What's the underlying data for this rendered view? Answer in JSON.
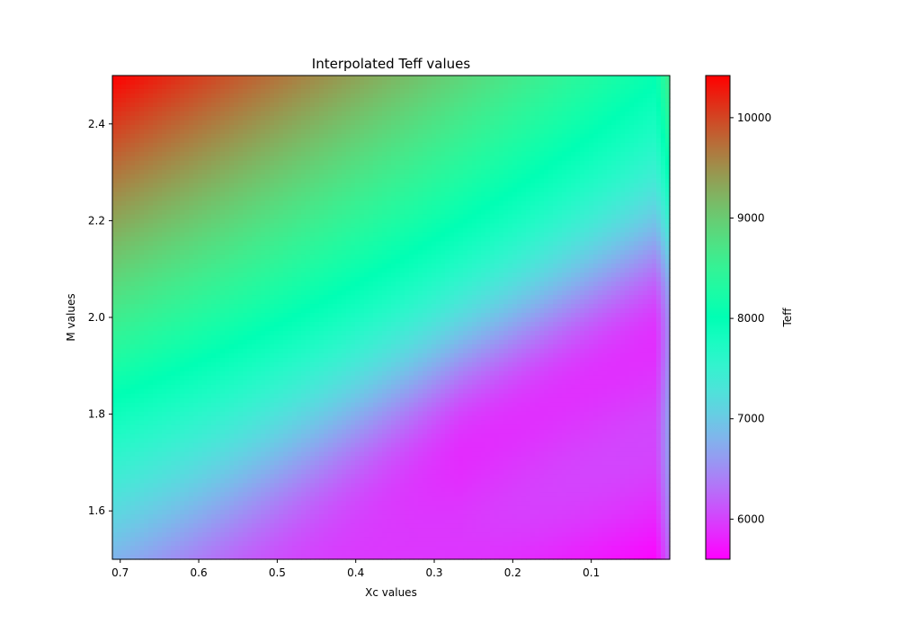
{
  "chart_data": {
    "type": "heatmap",
    "title": "Interpolated Teff values",
    "xlabel": "Xc values",
    "ylabel": "M values",
    "x_axis_reversed": true,
    "xlim": [
      0.71,
      0.0
    ],
    "ylim": [
      1.5,
      2.5
    ],
    "xticks": [
      0.7,
      0.6,
      0.5,
      0.4,
      0.3,
      0.2,
      0.1
    ],
    "yticks": [
      1.6,
      1.8,
      2.0,
      2.2,
      2.4
    ],
    "colorbar": {
      "label": "Teff",
      "colormap": "rainbow",
      "range": [
        5600,
        10420
      ],
      "ticks": [
        6000,
        7000,
        8000,
        9000,
        10000
      ]
    },
    "corner_values": {
      "xc_0.71_m_2.5": 10420,
      "xc_0.0_m_2.5": 8000,
      "xc_0.71_m_1.5": 6800,
      "xc_0.0_m_1.5": 5600
    },
    "trough_note_values": {
      "xc_0.1_m_1.92": 6900,
      "xc_0.3_m_1.75": 6900
    },
    "grid": false
  }
}
